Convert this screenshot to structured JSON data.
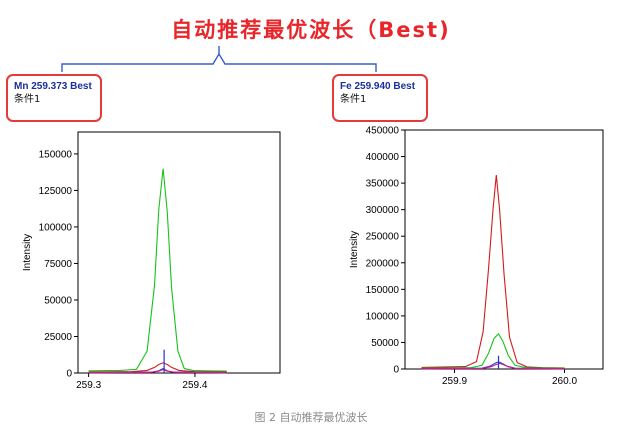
{
  "headline": "自动推荐最优波长（Best)",
  "labels": [
    {
      "line1": "Mn 259.373 Best",
      "line2": "条件1"
    },
    {
      "line1": "Fe 259.940 Best",
      "line2": "条件1"
    }
  ],
  "caption": "图 2 自动推荐最优波长",
  "colors": {
    "accent": "#e8262a",
    "bracket": "#3a5ec8",
    "green": "#19c219",
    "red": "#d61a1a",
    "blue": "#1f35d6",
    "magenta": "#d21a8a"
  },
  "chart_data": [
    {
      "type": "line",
      "ylabel": "Intensity",
      "xlim": [
        259.29,
        259.48
      ],
      "ylim": [
        0,
        165000
      ],
      "yticks": [
        0,
        25000,
        50000,
        75000,
        100000,
        125000,
        150000
      ],
      "xticks": [
        259.3,
        259.4
      ],
      "xtick_labels": [
        "259.3",
        "259.4"
      ],
      "series": [
        {
          "color": "#19c219",
          "x": [
            259.3,
            259.33,
            259.345,
            259.355,
            259.362,
            259.366,
            259.37,
            259.374,
            259.378,
            259.384,
            259.39,
            259.398,
            259.41,
            259.43
          ],
          "y": [
            1500,
            1800,
            2500,
            15000,
            60000,
            112000,
            140000,
            110000,
            58000,
            15000,
            3000,
            1800,
            1500,
            1400
          ]
        },
        {
          "color": "#d61a1a",
          "x": [
            259.3,
            259.34,
            259.355,
            259.362,
            259.366,
            259.37,
            259.374,
            259.378,
            259.385,
            259.4,
            259.43
          ],
          "y": [
            600,
            900,
            1800,
            3800,
            5800,
            7000,
            5800,
            3800,
            1800,
            900,
            600
          ]
        },
        {
          "color": "#1f35d6",
          "x": [
            259.3,
            259.36,
            259.366,
            259.37,
            259.374,
            259.378,
            259.43
          ],
          "y": [
            300,
            600,
            1500,
            3000,
            1500,
            600,
            300
          ]
        },
        {
          "color": "#d21a8a",
          "x": [
            259.3,
            259.358,
            259.366,
            259.37,
            259.374,
            259.382,
            259.43
          ],
          "y": [
            200,
            500,
            1200,
            2300,
            1200,
            500,
            200
          ]
        }
      ],
      "stick": {
        "color": "#1f35d6",
        "x": 259.371,
        "y": 16000
      }
    },
    {
      "type": "line",
      "ylabel": "Intensity",
      "xlim": [
        259.855,
        260.035
      ],
      "ylim": [
        0,
        450000
      ],
      "yticks": [
        0,
        50000,
        100000,
        150000,
        200000,
        250000,
        300000,
        350000,
        400000,
        450000
      ],
      "xticks": [
        259.9,
        260.0
      ],
      "xtick_labels": [
        "259.9",
        "260.0"
      ],
      "series": [
        {
          "color": "#d61a1a",
          "x": [
            259.87,
            259.91,
            259.92,
            259.926,
            259.931,
            259.935,
            259.938,
            259.941,
            259.945,
            259.95,
            259.957,
            259.966,
            259.98,
            260.0
          ],
          "y": [
            3000,
            4500,
            14000,
            70000,
            190000,
            300000,
            365000,
            300000,
            180000,
            60000,
            12000,
            4000,
            2500,
            2000
          ]
        },
        {
          "color": "#19c219",
          "x": [
            259.87,
            259.915,
            259.925,
            259.931,
            259.936,
            259.94,
            259.944,
            259.949,
            259.955,
            259.965,
            260.0
          ],
          "y": [
            1500,
            2500,
            7000,
            30000,
            58000,
            66000,
            52000,
            25000,
            7000,
            2500,
            1500
          ]
        },
        {
          "color": "#1f35d6",
          "x": [
            259.87,
            259.925,
            259.932,
            259.937,
            259.94,
            259.943,
            259.948,
            259.955,
            260.0
          ],
          "y": [
            800,
            1500,
            5000,
            11000,
            13500,
            11000,
            5000,
            1500,
            800
          ]
        },
        {
          "color": "#d21a8a",
          "x": [
            259.87,
            259.925,
            259.933,
            259.938,
            259.941,
            259.944,
            259.949,
            259.955,
            260.0
          ],
          "y": [
            600,
            1200,
            4000,
            8500,
            10500,
            8500,
            4000,
            1200,
            600
          ]
        }
      ],
      "stick": {
        "color": "#1f35d6",
        "x": 259.94,
        "y": 25000
      }
    }
  ]
}
